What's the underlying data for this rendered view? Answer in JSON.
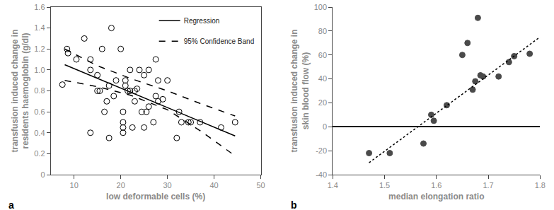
{
  "chart_data": [
    {
      "type": "scatter",
      "annotation": "a",
      "x_label": "low deformable cells (%)",
      "y_label": "transfusion induced change in\nresidents haemoglobin (g/dl)",
      "marker": "open circle",
      "color": "#000000",
      "x": [
        7.5,
        8.5,
        8.7,
        10.5,
        12.2,
        13.5,
        13.5,
        13.5,
        15,
        15,
        15.5,
        16,
        16.5,
        17,
        17.5,
        17.5,
        18,
        18.5,
        19,
        20,
        20.5,
        20.5,
        20.5,
        20.5,
        21,
        21,
        21.5,
        22,
        22,
        22.5,
        23,
        23,
        23.5,
        24,
        24.5,
        25,
        25,
        25.5,
        26,
        26,
        27,
        27.5,
        27.5,
        28,
        28,
        29,
        30,
        32,
        32.5,
        33,
        34.5,
        35,
        37,
        41.5,
        44.5
      ],
      "values": [
        0.86,
        1.2,
        1.16,
        1.1,
        1.3,
        1.0,
        1.1,
        0.4,
        0.8,
        0.95,
        0.8,
        1.2,
        0.6,
        0.7,
        0.85,
        0.35,
        1.4,
        0.75,
        0.9,
        1.2,
        0.6,
        0.5,
        0.45,
        0.4,
        0.85,
        0.9,
        0.8,
        0.8,
        1.0,
        0.45,
        0.8,
        0.7,
        0.82,
        1.0,
        0.6,
        0.95,
        0.45,
        0.6,
        0.65,
        1.0,
        0.5,
        1.1,
        0.75,
        0.7,
        0.9,
        0.72,
        0.9,
        0.35,
        0.6,
        0.5,
        0.5,
        0.5,
        0.5,
        0.45,
        0.5
      ],
      "series": [
        {
          "name": "Regression",
          "type": "line",
          "line_style": "solid",
          "color": "#000000",
          "x": [
            8,
            44.5
          ],
          "values": [
            1.05,
            0.37
          ]
        },
        {
          "name": "95% Confidence Band",
          "type": "band",
          "line_style": "dashed",
          "color": "#000000",
          "x": [
            8,
            15,
            22,
            30,
            37,
            44.5
          ],
          "upper": [
            1.2,
            1.04,
            0.92,
            0.8,
            0.68,
            0.56
          ],
          "lower": [
            0.9,
            0.84,
            0.76,
            0.62,
            0.42,
            0.18
          ]
        }
      ],
      "legend": "upper right",
      "grid": false,
      "xlim": [
        5,
        50
      ],
      "xticks": [
        10,
        20,
        30,
        40,
        50
      ],
      "ylim": [
        0,
        1.6
      ],
      "yticks": [
        0,
        0.2,
        0.4,
        0.6,
        0.8,
        {
          "value": 1,
          "label": "1.0"
        },
        1.2,
        1.4,
        1.6
      ]
    },
    {
      "type": "scatter",
      "annotation": "b",
      "x_label": "median elongation ratio",
      "y_label": "transfusion induced change in\nskin blood flow (%)",
      "marker": "circle",
      "color": "#4a4a4a",
      "x": [
        1.47,
        1.51,
        1.575,
        1.59,
        1.595,
        1.62,
        1.65,
        1.66,
        1.67,
        1.675,
        1.68,
        1.685,
        1.69,
        1.72,
        1.74,
        1.75,
        1.78
      ],
      "values": [
        -22,
        -22,
        -14,
        10,
        5,
        18,
        60,
        70,
        31,
        38,
        91,
        43,
        42,
        42,
        54,
        59,
        61
      ],
      "series": [
        {
          "type": "line",
          "line_style": "dotted",
          "color": "#000000",
          "x": [
            1.47,
            1.8
          ],
          "values": [
            -30,
            75
          ]
        }
      ],
      "grid": false,
      "xlim": [
        1.4,
        1.8
      ],
      "xticks": [
        1.4,
        1.5,
        1.6,
        1.7,
        1.8
      ],
      "ylim": [
        -40,
        100
      ],
      "yticks": [
        -40,
        -20,
        0,
        20,
        40,
        60,
        80,
        100
      ]
    }
  ]
}
